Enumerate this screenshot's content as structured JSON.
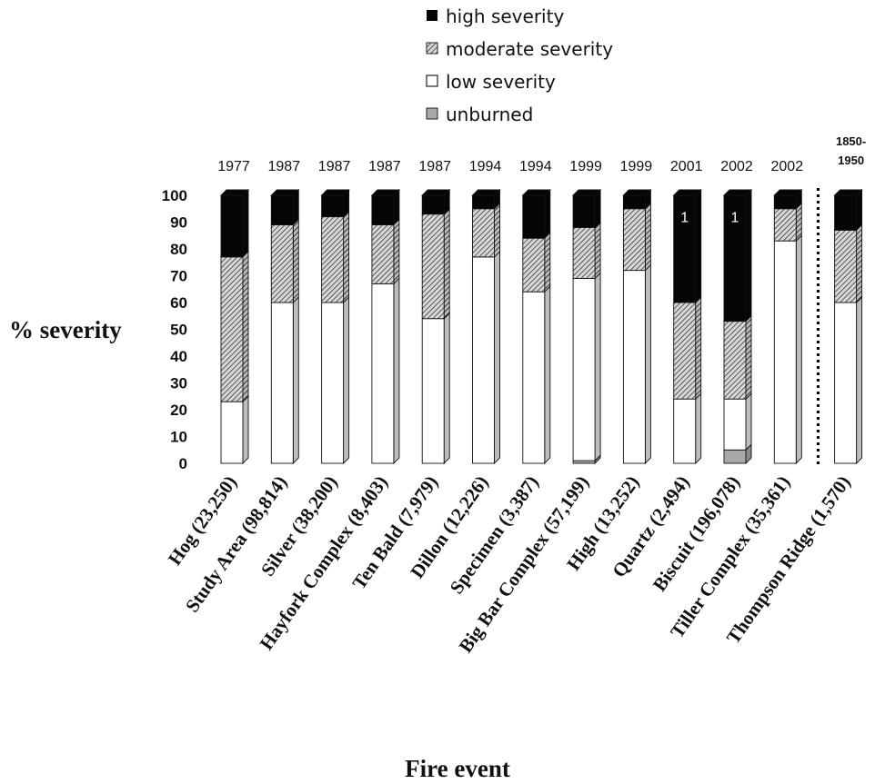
{
  "chart_data": {
    "type": "bar",
    "stacked": true,
    "ylabel": "% severity",
    "xlabel": "Fire event",
    "ylim": [
      0,
      100
    ],
    "yticks": [
      "0",
      "10",
      "20",
      "30",
      "40",
      "50",
      "60",
      "70",
      "80",
      "90",
      "100"
    ],
    "legend_position": "top",
    "categories": [
      "Hog (23,250)",
      "Study Area (98,814)",
      "Silver (38,200)",
      "Hayfork Complex (8,403)",
      "Ten Bald  (7,979)",
      "Dillon (12,226)",
      "Specimen (3,387)",
      "Big Bar Complex (57,199)",
      "High (13,252)",
      "Quartz (2,494)",
      "Biscuit (196,078)",
      "Tiller Complex (35,361)",
      "Thompson Ridge (1,570)"
    ],
    "years": [
      "1977",
      "1987",
      "1987",
      "1987",
      "1987",
      "1994",
      "1994",
      "1999",
      "1999",
      "2001",
      "2002",
      "2002",
      "1850-\n1950"
    ],
    "series": [
      {
        "name": "unburned",
        "color": "#a8a8a8",
        "values": [
          0,
          0,
          0,
          0,
          0,
          0,
          0,
          1,
          0,
          0,
          5,
          0,
          0
        ]
      },
      {
        "name": "low severity",
        "color": "#ffffff",
        "values": [
          23,
          60,
          60,
          67,
          54,
          77,
          64,
          68,
          72,
          24,
          19,
          83,
          60
        ]
      },
      {
        "name": "moderate severity",
        "color": "#9a9a9a",
        "values": [
          54,
          29,
          32,
          22,
          39,
          18,
          20,
          19,
          23,
          36,
          29,
          12,
          27
        ]
      },
      {
        "name": "high severity",
        "color": "#050505",
        "values": [
          23,
          11,
          8,
          11,
          7,
          5,
          16,
          12,
          5,
          40,
          47,
          5,
          13
        ]
      }
    ],
    "bar_annotations": [
      {
        "index": 9,
        "text": "1"
      },
      {
        "index": 10,
        "text": "1"
      }
    ],
    "divider_after_index": 11
  }
}
